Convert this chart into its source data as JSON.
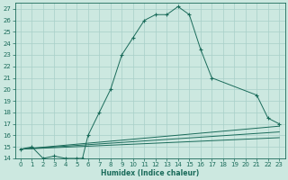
{
  "bg_color": "#cce8e0",
  "grid_color": "#a8cfc8",
  "line_color": "#1a6b5a",
  "xlabel": "Humidex (Indice chaleur)",
  "ylim": [
    14,
    27.5
  ],
  "xlim": [
    -0.5,
    23.5
  ],
  "yticks": [
    14,
    15,
    16,
    17,
    18,
    19,
    20,
    21,
    22,
    23,
    24,
    25,
    26,
    27
  ],
  "xticks": [
    0,
    1,
    2,
    3,
    4,
    5,
    6,
    7,
    8,
    9,
    10,
    11,
    12,
    13,
    14,
    15,
    16,
    17,
    18,
    19,
    20,
    21,
    22,
    23
  ],
  "curve1_x": [
    0,
    1,
    2,
    3,
    4,
    5,
    5.5,
    6,
    7,
    8,
    9,
    10,
    11,
    12,
    13,
    14,
    15,
    16,
    17,
    21,
    22,
    23
  ],
  "curve1_y": [
    14.8,
    15.0,
    14.0,
    14.2,
    14.0,
    14.0,
    14.0,
    16.0,
    18.0,
    20.0,
    23.0,
    24.5,
    26.0,
    26.5,
    26.5,
    27.2,
    26.5,
    23.5,
    21.0,
    19.5,
    17.5,
    17.0
  ],
  "line1_x": [
    0,
    23
  ],
  "line1_y": [
    14.8,
    16.8
  ],
  "line2_x": [
    0,
    23
  ],
  "line2_y": [
    14.8,
    16.3
  ],
  "line3_x": [
    0,
    23
  ],
  "line3_y": [
    14.8,
    15.8
  ]
}
